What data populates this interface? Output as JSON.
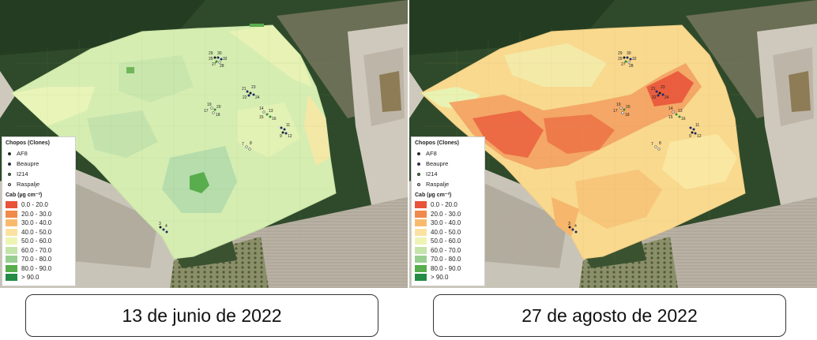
{
  "maps": [
    {
      "caption": "13 de junio de 2022",
      "legend_title_points": "Chopos (Clones)",
      "legend_title_cab": "Cab (µg cm⁻²)"
    },
    {
      "caption": "27 de agosto de 2022",
      "legend_title_points": "Chopos (Clones)",
      "legend_title_cab": "Cab (µg cm⁻²)"
    }
  ],
  "clones": [
    {
      "label": "AF8",
      "color": "#1a1a1a"
    },
    {
      "label": "Beaupre",
      "color": "#1a2a6c"
    },
    {
      "label": "I214",
      "color": "#3a8a3a"
    },
    {
      "label": "Raspalje",
      "color": "#dcdcdc"
    }
  ],
  "classes": [
    {
      "label": "0.0 - 20.0",
      "color": "#e8533a"
    },
    {
      "label": "20.0 - 30.0",
      "color": "#f08a4c"
    },
    {
      "label": "30.0 - 40.0",
      "color": "#f8bb6e"
    },
    {
      "label": "40.0 - 50.0",
      "color": "#fbe2a0"
    },
    {
      "label": "50.0 - 60.0",
      "color": "#eef5b4"
    },
    {
      "label": "60.0 - 70.0",
      "color": "#c5e4aa"
    },
    {
      "label": "70.0 - 80.0",
      "color": "#98cf90"
    },
    {
      "label": "80.0 - 90.0",
      "color": "#58ad4c"
    },
    {
      "label": "> 90.0",
      "color": "#238b45"
    }
  ],
  "plot_labels": [
    "29",
    "30",
    "31",
    "32",
    "25",
    "26",
    "27",
    "28",
    "21",
    "22",
    "23",
    "24",
    "19",
    "20",
    "17",
    "18",
    "14",
    "15",
    "13",
    "16",
    "11",
    "12",
    "9",
    "10",
    "7",
    "8",
    "5",
    "6",
    "3",
    "4",
    "1",
    "2"
  ]
}
